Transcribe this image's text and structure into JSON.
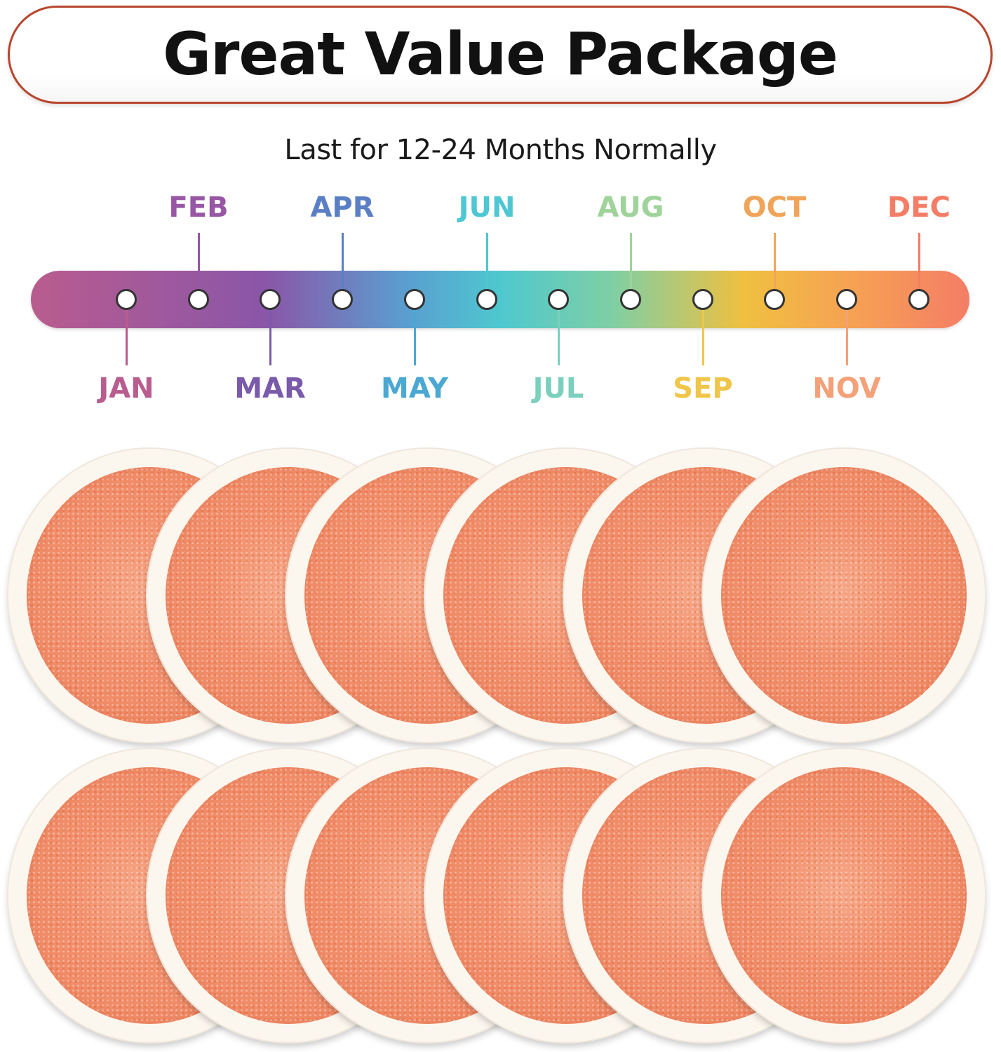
{
  "banner": {
    "title": "Great Value Package"
  },
  "subtitle": "Last for 12-24 Months Normally",
  "timeline": {
    "months": [
      {
        "label": "JAN",
        "color": "#b95c8e"
      },
      {
        "label": "FEB",
        "color": "#9757a4"
      },
      {
        "label": "MAR",
        "color": "#7a5aab"
      },
      {
        "label": "APR",
        "color": "#5a7fc4"
      },
      {
        "label": "MAY",
        "color": "#4aa8d2"
      },
      {
        "label": "JUN",
        "color": "#4ec7d2"
      },
      {
        "label": "JUL",
        "color": "#7ad0bc"
      },
      {
        "label": "AUG",
        "color": "#9fd39a"
      },
      {
        "label": "SEP",
        "color": "#f0c64a"
      },
      {
        "label": "OCT",
        "color": "#f0a45a"
      },
      {
        "label": "NOV",
        "color": "#f4a078"
      },
      {
        "label": "DEC",
        "color": "#f47d66"
      }
    ]
  },
  "pads": {
    "count": 12,
    "rows": 2,
    "per_row": 6,
    "color": "#ef8a66",
    "edge_color": "#fbf6ee"
  }
}
